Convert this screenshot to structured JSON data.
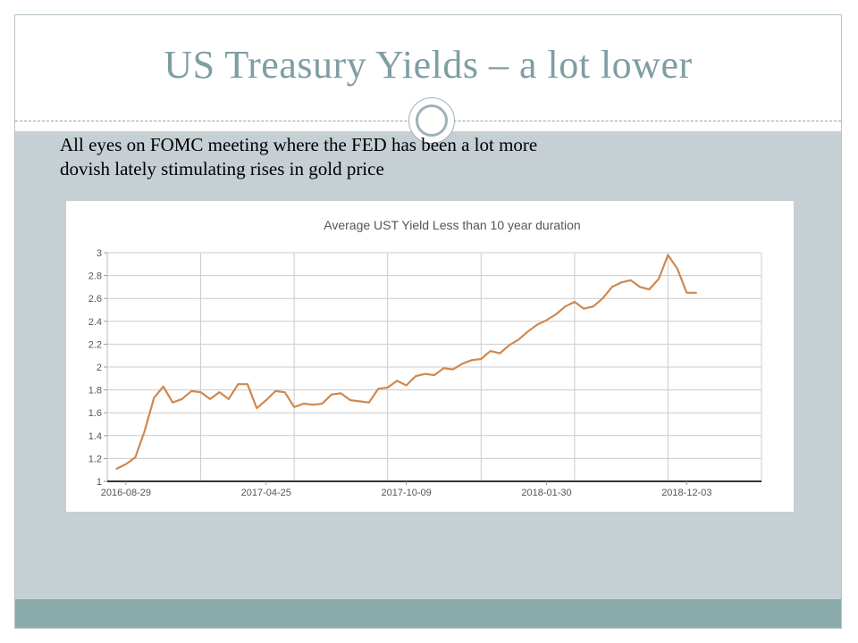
{
  "slide": {
    "title": "US Treasury Yields – a lot lower",
    "body_line_1": "All eyes on FOMC meeting where the FED has been  a lot more",
    "body_line_2": "dovish lately stimulating rises in gold price"
  },
  "colors": {
    "title": "#7e9ea3",
    "body_background": "#c5cfd4",
    "footer_band": "#8aabaa",
    "line": "#d0884e",
    "grid": "#cccccc"
  },
  "chart_data": {
    "type": "line",
    "title": "Average UST Yield Less than 10 year duration",
    "xlabel": "",
    "ylabel": "",
    "ylim": [
      1,
      3
    ],
    "yticks": [
      1,
      1.2,
      1.4,
      1.6,
      1.8,
      2,
      2.2,
      2.4,
      2.6,
      2.8,
      3
    ],
    "ytick_labels": [
      "1",
      "1.2",
      "1.4",
      "1.6",
      "1.8",
      "2",
      "2.2",
      "2.4",
      "2.6",
      "2.8",
      "3"
    ],
    "xlim": [
      0,
      70
    ],
    "xtick_labels": [
      "2016-08-29",
      "2017-04-25",
      "2017-10-09",
      "2018-01-30",
      "2018-12-03"
    ],
    "xtick_positions": [
      2,
      17,
      32,
      47,
      62
    ],
    "vertical_gridlines": [
      10,
      20,
      30,
      40,
      50,
      60
    ],
    "grid": true,
    "series": [
      {
        "name": "Average UST Yield",
        "x": [
          1,
          2,
          3,
          4,
          5,
          6,
          7,
          8,
          9,
          10,
          11,
          12,
          13,
          14,
          15,
          16,
          17,
          18,
          19,
          20,
          21,
          22,
          23,
          24,
          25,
          26,
          27,
          28,
          29,
          30,
          31,
          32,
          33,
          34,
          35,
          36,
          37,
          38,
          39,
          40,
          41,
          42,
          43,
          44,
          45,
          46,
          47,
          48,
          49,
          50,
          51,
          52,
          53,
          54,
          55,
          56,
          57,
          58,
          59,
          60,
          61,
          62,
          63
        ],
        "values": [
          1.11,
          1.15,
          1.21,
          1.44,
          1.73,
          1.83,
          1.69,
          1.72,
          1.79,
          1.78,
          1.72,
          1.78,
          1.72,
          1.85,
          1.85,
          1.64,
          1.71,
          1.79,
          1.78,
          1.65,
          1.68,
          1.67,
          1.68,
          1.76,
          1.77,
          1.71,
          1.7,
          1.69,
          1.81,
          1.82,
          1.88,
          1.84,
          1.92,
          1.94,
          1.93,
          1.99,
          1.98,
          2.03,
          2.06,
          2.07,
          2.14,
          2.12,
          2.19,
          2.24,
          2.31,
          2.37,
          2.41,
          2.46,
          2.53,
          2.57,
          2.51,
          2.53,
          2.6,
          2.7,
          2.74,
          2.76,
          2.7,
          2.68,
          2.77,
          2.98,
          2.86,
          2.65,
          2.65
        ]
      }
    ]
  }
}
